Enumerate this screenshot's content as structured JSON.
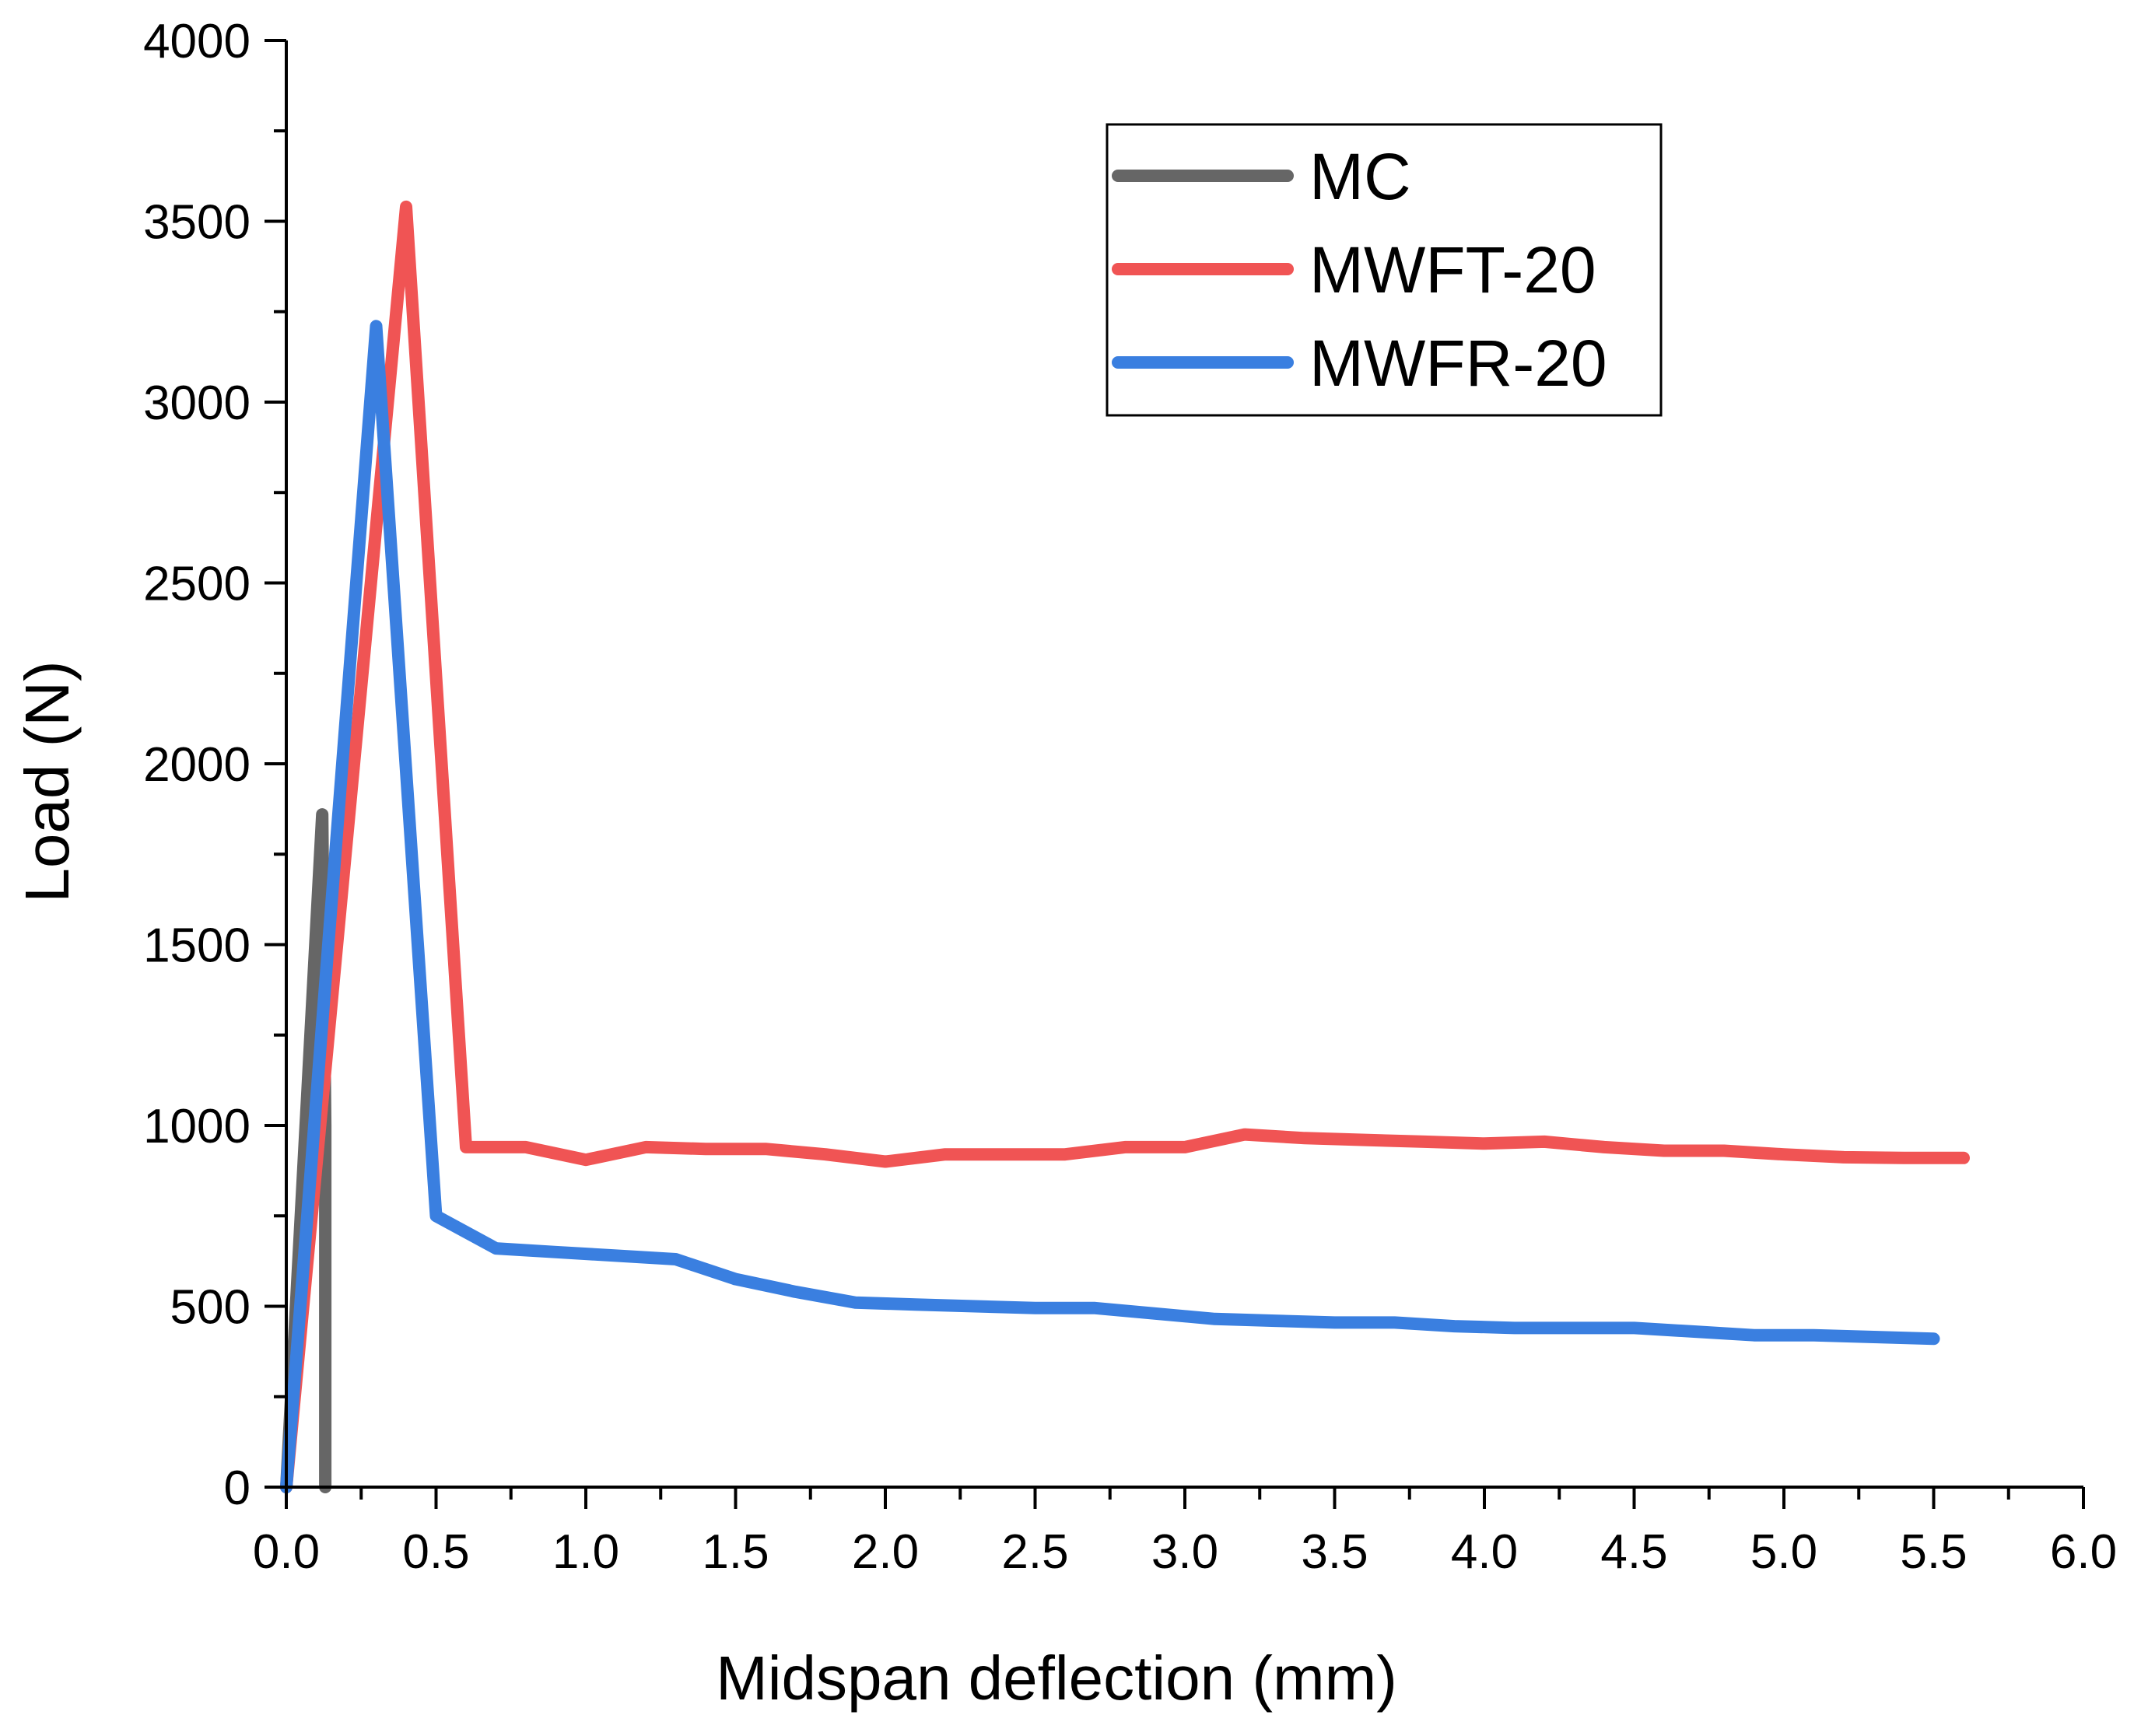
{
  "chart_data": {
    "type": "line",
    "title": "",
    "xlabel": "Midspan deflection (mm)",
    "ylabel": "Load (N)",
    "xlim": [
      0,
      6
    ],
    "ylim": [
      0,
      4000
    ],
    "xticks": [
      0,
      0.5,
      1,
      1.5,
      2,
      2.5,
      3,
      3.5,
      4,
      4.5,
      5,
      5.5,
      6
    ],
    "xtick_labels": [
      "0.0",
      "0.5",
      "1.0",
      "1.5",
      "2.0",
      "2.5",
      "3.0",
      "3.5",
      "4.0",
      "4.5",
      "5.0",
      "5.5",
      "6.0"
    ],
    "yticks": [
      0,
      500,
      1000,
      1500,
      2000,
      2500,
      3000,
      3500,
      4000
    ],
    "ytick_labels": [
      "0",
      "500",
      "1000",
      "1500",
      "2000",
      "2500",
      "3000",
      "3500",
      "4000"
    ],
    "grid": false,
    "legend_position": "top-right",
    "series": [
      {
        "name": "MC",
        "color": "#666666",
        "x": [
          0,
          0.12,
          0.13,
          0.13
        ],
        "y": [
          0,
          1860,
          1000,
          0
        ]
      },
      {
        "name": "MWFT-20",
        "color": "#f05454",
        "x": [
          0,
          0.4,
          0.6,
          0.8,
          1.0,
          1.2,
          1.4,
          1.6,
          1.8,
          2.0,
          2.2,
          2.4,
          2.6,
          2.8,
          3.0,
          3.2,
          3.4,
          3.6,
          3.8,
          4.0,
          4.2,
          4.4,
          4.6,
          4.8,
          5.0,
          5.2,
          5.4,
          5.6
        ],
        "y": [
          0,
          3540,
          940,
          940,
          905,
          940,
          935,
          935,
          920,
          900,
          920,
          920,
          920,
          940,
          940,
          975,
          965,
          960,
          955,
          950,
          955,
          940,
          930,
          930,
          920,
          912,
          910,
          910
        ]
      },
      {
        "name": "MWFR-20",
        "color": "#3a7fe0",
        "x": [
          0,
          0.3,
          0.5,
          0.7,
          0.9,
          1.1,
          1.3,
          1.5,
          1.7,
          1.9,
          2.1,
          2.3,
          2.5,
          2.7,
          2.9,
          3.1,
          3.3,
          3.5,
          3.7,
          3.9,
          4.1,
          4.3,
          4.5,
          4.7,
          4.9,
          5.1,
          5.3,
          5.5
        ],
        "y": [
          0,
          3210,
          750,
          660,
          650,
          640,
          630,
          575,
          540,
          510,
          505,
          500,
          495,
          495,
          480,
          465,
          460,
          455,
          455,
          445,
          440,
          440,
          440,
          430,
          420,
          420,
          415,
          410
        ]
      }
    ]
  }
}
